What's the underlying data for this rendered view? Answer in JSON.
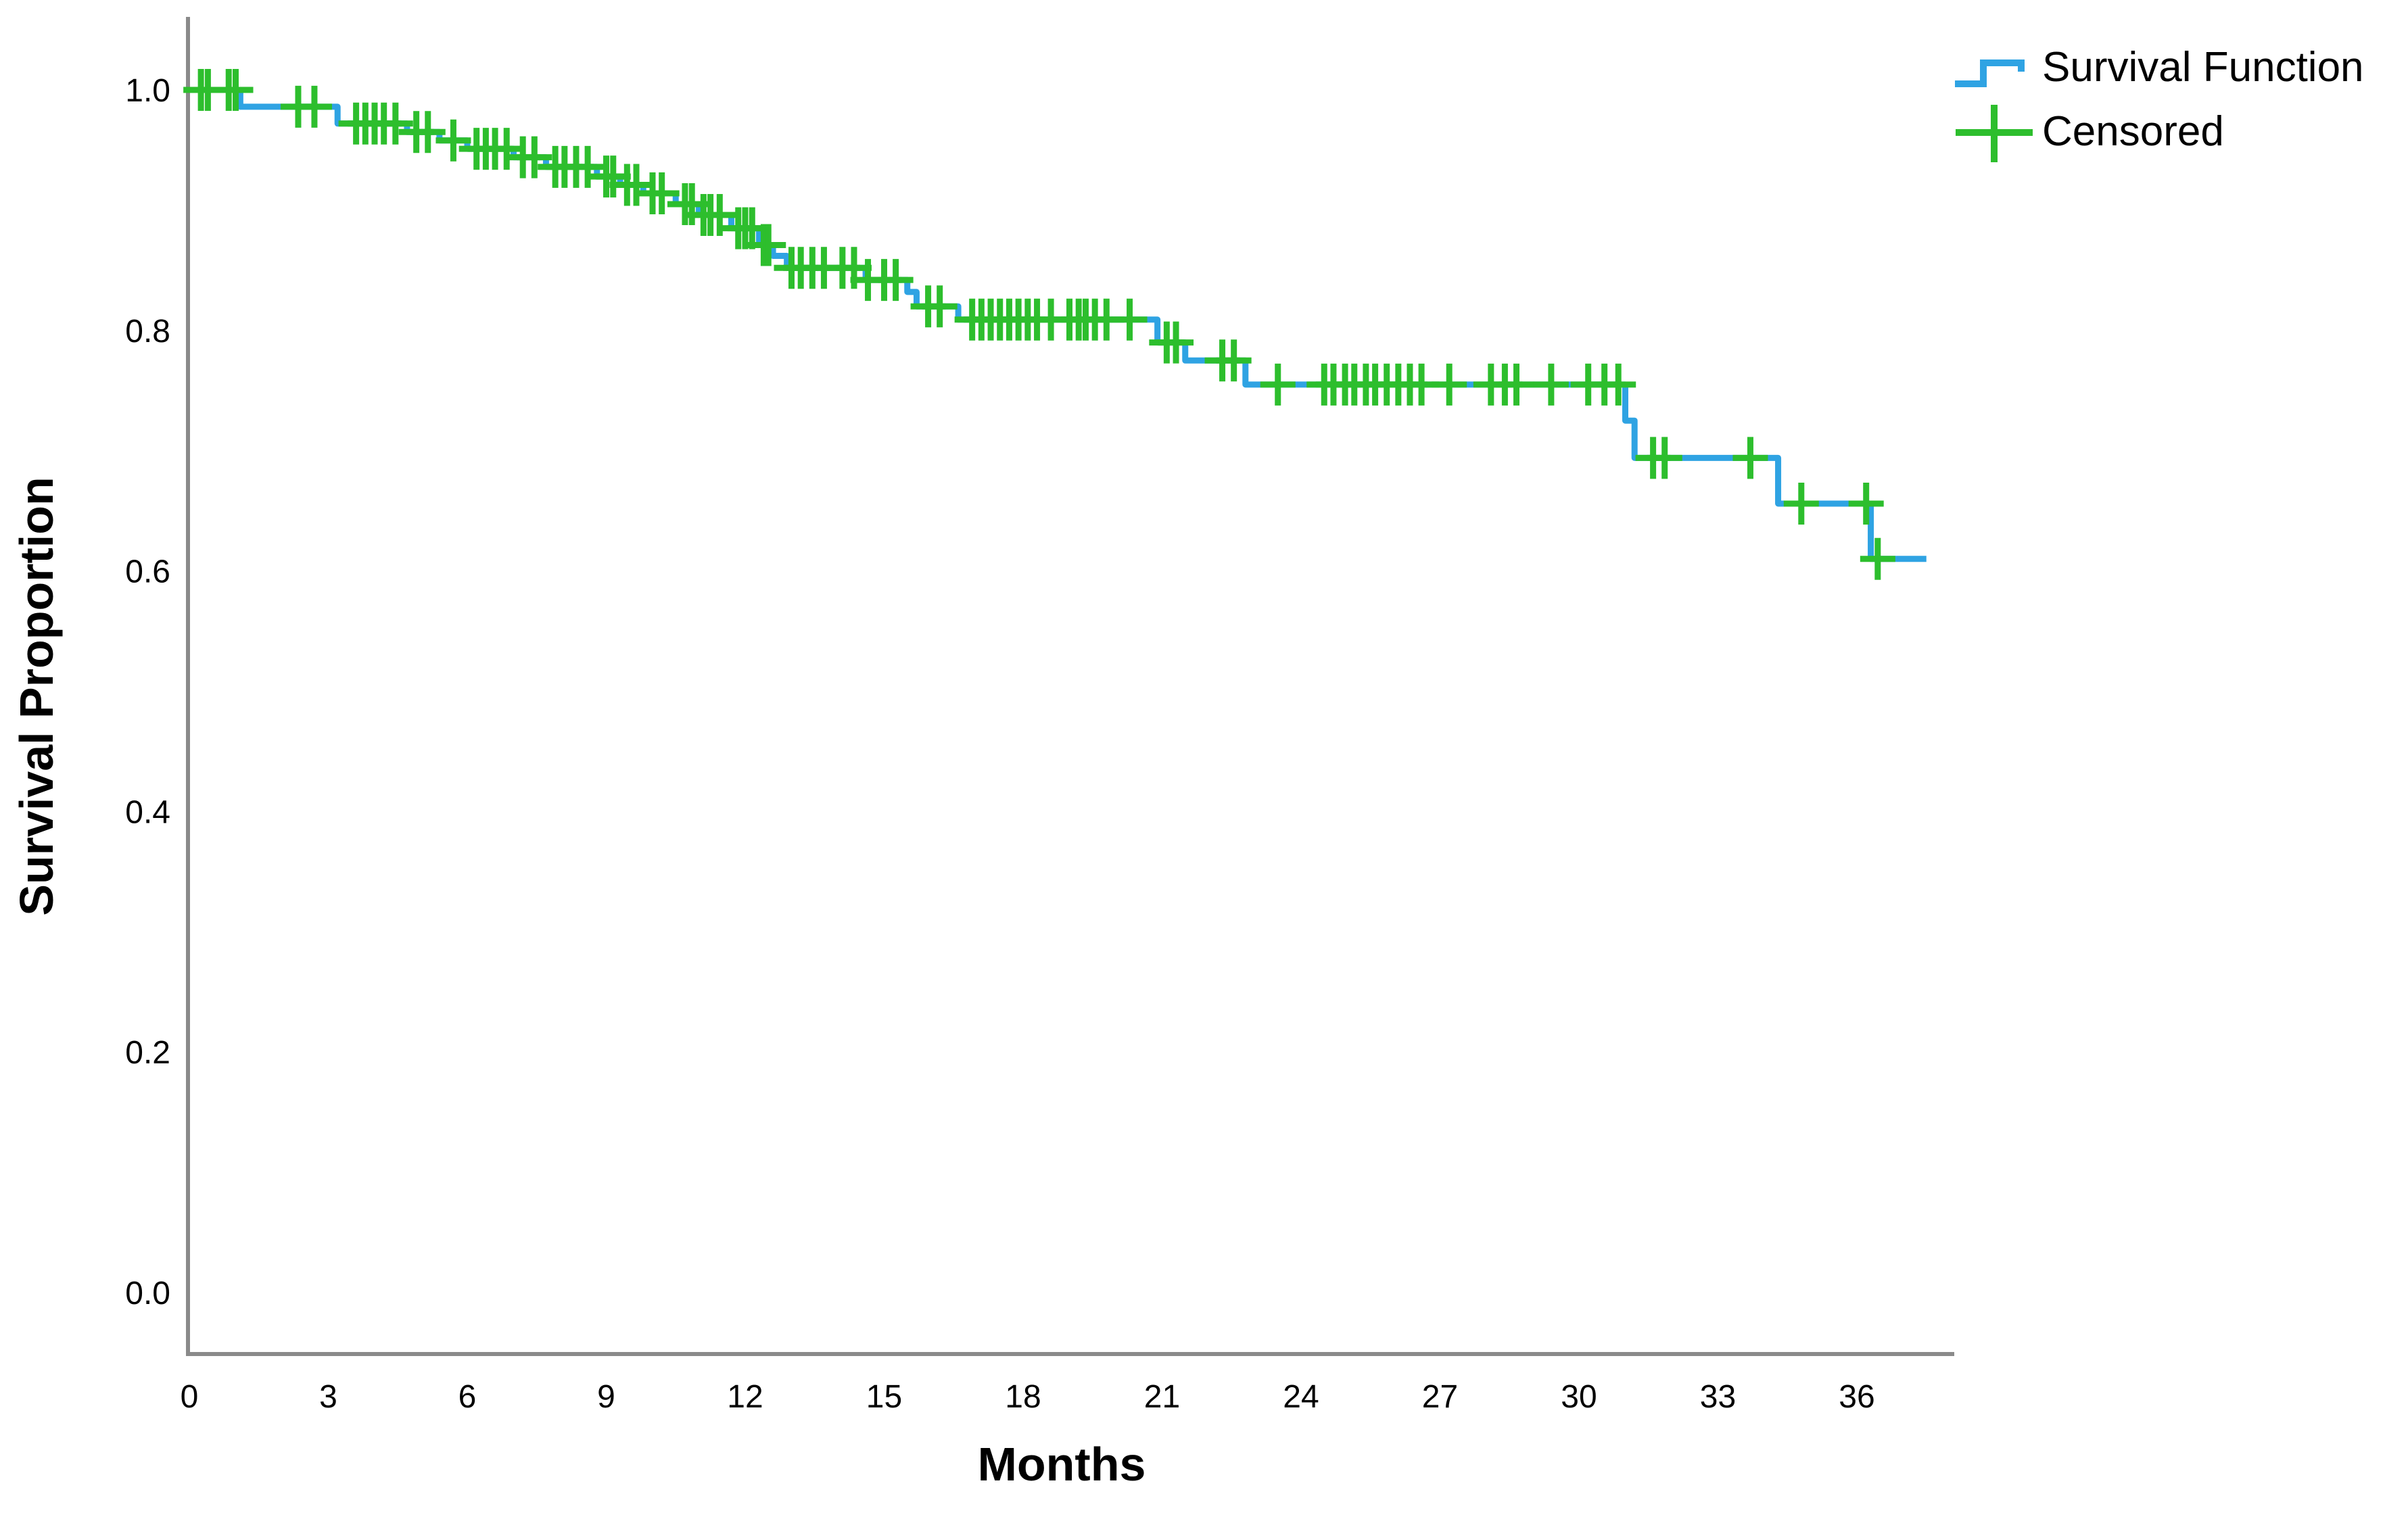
{
  "axes": {
    "x_title": "Months",
    "y_title": "Survival Proportion"
  },
  "legend": {
    "items": [
      {
        "label": "Survival Function",
        "marker": "step-line",
        "color": "#2FA3E3"
      },
      {
        "label": "Censored",
        "marker": "plus",
        "color": "#2DBE2D"
      }
    ]
  },
  "colors": {
    "survival_line": "#2FA3E3",
    "censored_marker": "#2DBE2D",
    "axis_line": "#8A8A8A",
    "text": "#000000",
    "background": "#ffffff"
  },
  "chart_data": {
    "type": "line",
    "subtype": "kaplan-meier-step",
    "title": "",
    "xlabel": "Months",
    "ylabel": "Survival Proportion",
    "xlim": [
      0,
      38
    ],
    "ylim": [
      0.0,
      1.05
    ],
    "x_ticks": [
      0,
      3,
      6,
      9,
      12,
      15,
      18,
      21,
      24,
      27,
      30,
      33,
      36
    ],
    "y_ticks": [
      1.0,
      0.8,
      0.6,
      0.4,
      0.2,
      0.0
    ],
    "grid": false,
    "legend_position": "top-right",
    "legend_entries": [
      "Survival Function",
      "Censored"
    ],
    "series": [
      {
        "name": "Survival Function",
        "color": "#2FA3E3",
        "steps": [
          [
            0,
            1.0
          ],
          [
            1.1,
            0.986
          ],
          [
            3.2,
            0.972
          ],
          [
            4.7,
            0.965
          ],
          [
            5.4,
            0.958
          ],
          [
            6.0,
            0.951
          ],
          [
            7.0,
            0.944
          ],
          [
            7.7,
            0.936
          ],
          [
            8.8,
            0.928
          ],
          [
            9.3,
            0.921
          ],
          [
            9.8,
            0.914
          ],
          [
            10.5,
            0.905
          ],
          [
            11.0,
            0.896
          ],
          [
            11.7,
            0.885
          ],
          [
            12.3,
            0.871
          ],
          [
            12.6,
            0.862
          ],
          [
            12.9,
            0.852
          ],
          [
            14.6,
            0.842
          ],
          [
            15.5,
            0.832
          ],
          [
            15.7,
            0.82
          ],
          [
            16.6,
            0.809
          ],
          [
            20.9,
            0.79
          ],
          [
            21.5,
            0.775
          ],
          [
            22.8,
            0.755
          ],
          [
            31.0,
            0.725
          ],
          [
            31.2,
            0.694
          ],
          [
            34.3,
            0.656
          ],
          [
            36.3,
            0.61
          ]
        ],
        "end_time": 37.5
      }
    ],
    "censored": {
      "name": "Censored",
      "color": "#2DBE2D",
      "points": [
        [
          0.25,
          1.0
        ],
        [
          0.4,
          1.0
        ],
        [
          0.85,
          1.0
        ],
        [
          1.0,
          1.0
        ],
        [
          2.35,
          0.986
        ],
        [
          2.7,
          0.986
        ],
        [
          3.6,
          0.972
        ],
        [
          3.8,
          0.972
        ],
        [
          4.0,
          0.972
        ],
        [
          4.2,
          0.972
        ],
        [
          4.45,
          0.972
        ],
        [
          4.9,
          0.965
        ],
        [
          5.15,
          0.965
        ],
        [
          5.7,
          0.958
        ],
        [
          6.2,
          0.951
        ],
        [
          6.4,
          0.951
        ],
        [
          6.6,
          0.951
        ],
        [
          6.85,
          0.951
        ],
        [
          7.2,
          0.944
        ],
        [
          7.45,
          0.944
        ],
        [
          7.9,
          0.936
        ],
        [
          8.1,
          0.936
        ],
        [
          8.35,
          0.936
        ],
        [
          8.6,
          0.936
        ],
        [
          9.0,
          0.928
        ],
        [
          9.15,
          0.928
        ],
        [
          9.45,
          0.921
        ],
        [
          9.65,
          0.921
        ],
        [
          10.0,
          0.914
        ],
        [
          10.2,
          0.914
        ],
        [
          10.7,
          0.905
        ],
        [
          10.85,
          0.905
        ],
        [
          11.1,
          0.896
        ],
        [
          11.25,
          0.896
        ],
        [
          11.45,
          0.896
        ],
        [
          11.85,
          0.885
        ],
        [
          12.0,
          0.885
        ],
        [
          12.15,
          0.885
        ],
        [
          12.4,
          0.871
        ],
        [
          12.5,
          0.871
        ],
        [
          13.0,
          0.852
        ],
        [
          13.2,
          0.852
        ],
        [
          13.45,
          0.852
        ],
        [
          13.7,
          0.852
        ],
        [
          14.1,
          0.852
        ],
        [
          14.35,
          0.852
        ],
        [
          14.65,
          0.842
        ],
        [
          15.0,
          0.842
        ],
        [
          15.25,
          0.842
        ],
        [
          15.95,
          0.82
        ],
        [
          16.2,
          0.82
        ],
        [
          16.9,
          0.809
        ],
        [
          17.1,
          0.809
        ],
        [
          17.3,
          0.809
        ],
        [
          17.5,
          0.809
        ],
        [
          17.7,
          0.809
        ],
        [
          17.9,
          0.809
        ],
        [
          18.1,
          0.809
        ],
        [
          18.3,
          0.809
        ],
        [
          18.6,
          0.809
        ],
        [
          19.0,
          0.809
        ],
        [
          19.2,
          0.809
        ],
        [
          19.35,
          0.809
        ],
        [
          19.55,
          0.809
        ],
        [
          19.8,
          0.809
        ],
        [
          20.3,
          0.809
        ],
        [
          21.1,
          0.79
        ],
        [
          21.3,
          0.79
        ],
        [
          22.3,
          0.775
        ],
        [
          22.55,
          0.775
        ],
        [
          23.5,
          0.755
        ],
        [
          24.5,
          0.755
        ],
        [
          24.7,
          0.755
        ],
        [
          24.95,
          0.755
        ],
        [
          25.15,
          0.755
        ],
        [
          25.4,
          0.755
        ],
        [
          25.6,
          0.755
        ],
        [
          25.85,
          0.755
        ],
        [
          26.1,
          0.755
        ],
        [
          26.35,
          0.755
        ],
        [
          26.6,
          0.755
        ],
        [
          27.2,
          0.755
        ],
        [
          28.1,
          0.755
        ],
        [
          28.4,
          0.755
        ],
        [
          28.65,
          0.755
        ],
        [
          29.4,
          0.755
        ],
        [
          30.2,
          0.755
        ],
        [
          30.55,
          0.755
        ],
        [
          30.85,
          0.755
        ],
        [
          31.6,
          0.694
        ],
        [
          31.85,
          0.694
        ],
        [
          33.7,
          0.694
        ],
        [
          34.8,
          0.656
        ],
        [
          36.2,
          0.656
        ],
        [
          36.45,
          0.61
        ]
      ]
    }
  }
}
